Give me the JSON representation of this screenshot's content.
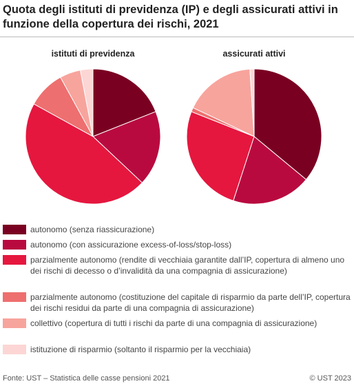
{
  "title": "Quota degli istituti di previdenza (IP) e degli assicurati attivi in funzione della copertura dei rischi, 2021",
  "footer": {
    "source": "Fonte: UST – Statistica delle casse pensioni 2021",
    "copyright": "© UST 2023"
  },
  "colors": [
    "#7a0022",
    "#b90a3f",
    "#e5173f",
    "#ee6f6f",
    "#f7a49d",
    "#fcd6d4"
  ],
  "legend": [
    "autonomo (senza riassicurazione)",
    "autonomo (con assicurazione excess-of-loss/stop-loss)",
    "parzialmente autonomo (rendite di vecchiaia garantite dall’IP, copertura di almeno uno dei rischi di decesso o d’invalidità da una compagnia di assicurazione)",
    "parzialmente autonomo (costituzione del capitale di risparmio da parte dell’IP, copertura dei rischi residui da parte di una compagnia di assicurazione)",
    "collettivo (copertura di tutti i rischi da parte di una compagnia di assicurazione)",
    "istituzione di risparmio (soltanto il risparmio per la vecchiaia)"
  ],
  "chart_data": [
    {
      "type": "pie",
      "title": "istituti di previdenza",
      "categories": [
        "autonomo (senza riassicurazione)",
        "autonomo (con assicurazione excess-of-loss/stop-loss)",
        "parzialmente autonomo (rendite di vecchiaia garantite dall’IP, copertura di almeno uno dei rischi di decesso o d’invalidità da una compagnia di assicurazione)",
        "parzialmente autonomo (costituzione del capitale di risparmio da parte dell’IP, copertura dei rischi residui da parte di una compagnia di assicurazione)",
        "collettivo (copertura di tutti i rischi da parte di una compagnia di assicurazione)",
        "istituzione di risparmio (soltanto il risparmio per la vecchiaia)"
      ],
      "values": [
        19,
        18,
        46,
        9,
        5,
        3
      ]
    },
    {
      "type": "pie",
      "title": "assicurati attivi",
      "categories": [
        "autonomo (senza riassicurazione)",
        "autonomo (con assicurazione excess-of-loss/stop-loss)",
        "parzialmente autonomo (rendite di vecchiaia garantite dall’IP, copertura di almeno uno dei rischi di decesso o d’invalidità da una compagnia di assicurazione)",
        "parzialmente autonomo (costituzione del capitale di risparmio da parte dell’IP, copertura dei rischi residui da parte di una compagnia di assicurazione)",
        "collettivo (copertura di tutti i rischi da parte di una compagnia di assicurazione)",
        "istituzione di risparmio (soltanto il risparmio per la vecchiaia)"
      ],
      "values": [
        36,
        19,
        26,
        1,
        17,
        1
      ]
    }
  ]
}
